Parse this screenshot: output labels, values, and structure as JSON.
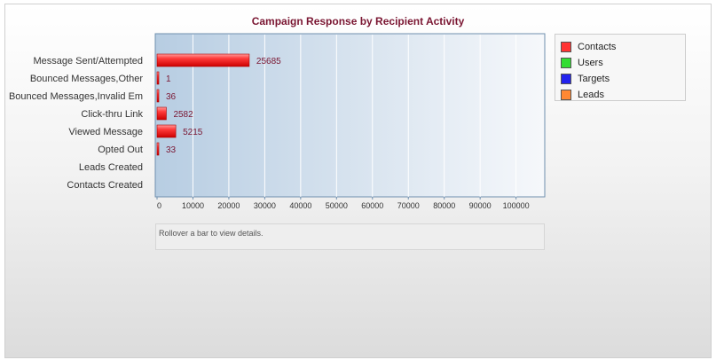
{
  "chart_data": {
    "type": "bar",
    "orientation": "horizontal",
    "title": "Campaign Response by Recipient Activity",
    "xlabel": "",
    "ylabel": "",
    "categories": [
      "Message Sent/Attempted",
      "Bounced Messages,Other",
      "Bounced Messages,Invalid Em",
      "Click-thru Link",
      "Viewed Message",
      "Opted Out",
      "Leads Created",
      "Contacts Created"
    ],
    "series": [
      {
        "name": "Contacts",
        "color": "#ff3333",
        "values": [
          25685,
          1,
          36,
          2582,
          5215,
          33,
          null,
          null
        ]
      }
    ],
    "data_labels": [
      "25685",
      "1",
      "36",
      "2582",
      "5215",
      "33",
      "",
      ""
    ],
    "xlim": [
      0,
      108000
    ],
    "xticks": [
      0,
      10000,
      20000,
      30000,
      40000,
      50000,
      60000,
      70000,
      80000,
      90000,
      100000
    ],
    "xtick_labels": [
      "0",
      "10000",
      "20000",
      "30000",
      "40000",
      "50000",
      "60000",
      "70000",
      "80000",
      "90000",
      "100000"
    ],
    "grid": true,
    "legend_position": "right",
    "legend": [
      {
        "name": "Contacts",
        "color": "#ff3333"
      },
      {
        "name": "Users",
        "color": "#33dd33"
      },
      {
        "name": "Targets",
        "color": "#2222ee"
      },
      {
        "name": "Leads",
        "color": "#ff8833"
      }
    ]
  },
  "details_text": "Rollover a bar to view details."
}
